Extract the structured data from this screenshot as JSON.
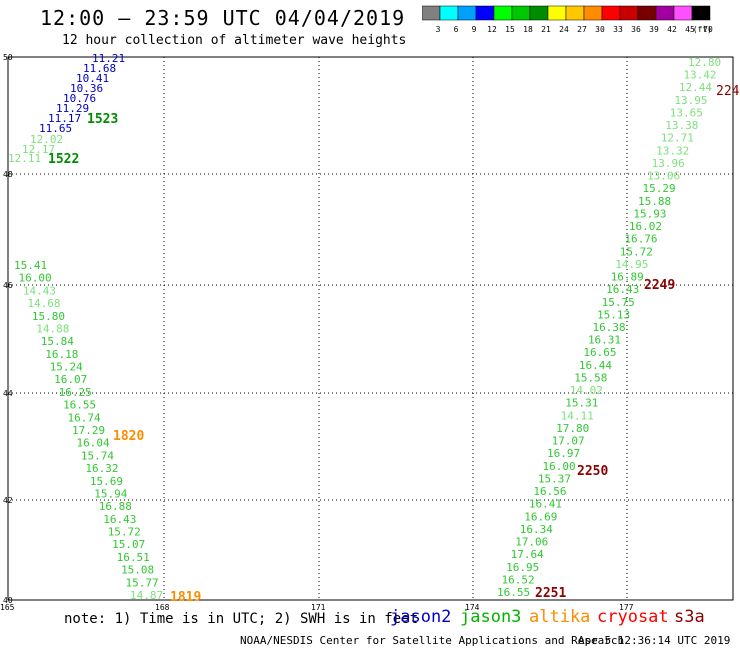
{
  "header": {
    "title": "12:00 – 23:59 UTC 04/04/2019",
    "subtitle": "12 hour collection of altimeter wave heights"
  },
  "color_scale": {
    "unit": "(ft)",
    "bins": [
      {
        "label": "3",
        "color": "#808080"
      },
      {
        "label": "6",
        "color": "#00ffff"
      },
      {
        "label": "9",
        "color": "#00a0ff"
      },
      {
        "label": "12",
        "color": "#0000ff"
      },
      {
        "label": "15",
        "color": "#00ff00"
      },
      {
        "label": "18",
        "color": "#00c800"
      },
      {
        "label": "21",
        "color": "#008c00"
      },
      {
        "label": "24",
        "color": "#ffff00"
      },
      {
        "label": "27",
        "color": "#ffc800"
      },
      {
        "label": "30",
        "color": "#ff8c00"
      },
      {
        "label": "33",
        "color": "#ff0000"
      },
      {
        "label": "36",
        "color": "#c80000"
      },
      {
        "label": "39",
        "color": "#780000"
      },
      {
        "label": "42",
        "color": "#a000a0"
      },
      {
        "label": "45",
        "color": "#ff50ff"
      },
      {
        "label": "70",
        "color": "#000000"
      }
    ]
  },
  "axes": {
    "lat_labels": [
      "50",
      "48",
      "46",
      "44",
      "42",
      "40"
    ],
    "lon_labels": [
      "165",
      "168",
      "171",
      "174",
      "177"
    ]
  },
  "text_colors": {
    "jason2": "#0000c8",
    "jason3_light": "#7ee07e",
    "jason3_mid": "#32c832",
    "jason3_dark": "#008c00",
    "altika": "#ff8c00",
    "cryosat": "#ff0000",
    "s3a": "#8b0000"
  },
  "tracks": {
    "track1": {
      "values": [
        "11.21",
        "11.68",
        "10.41",
        "10.36",
        "10.76",
        "11.29",
        "11.17",
        "11.65",
        "12.11",
        "12.02",
        "12.17"
      ],
      "tags": [
        "1523",
        "1522"
      ]
    },
    "track2": {
      "values": [
        "15.41",
        "16.00",
        "14.43",
        "14.68",
        "15.80",
        "14.88",
        "15.84",
        "16.18",
        "15.24",
        "16.07",
        "16.25",
        "16.55",
        "16.74",
        "17.29",
        "16.04",
        "15.74",
        "16.32",
        "15.69",
        "15.94",
        "16.88",
        "16.43",
        "15.72",
        "15.07",
        "16.51",
        "15.08",
        "15.77",
        "14.87"
      ],
      "tags": [
        "1820",
        "1819"
      ]
    },
    "track3": {
      "values": [
        "12.80",
        "13.42",
        "12.44",
        "13.95",
        "13.65",
        "13.38",
        "12.71",
        "13.32",
        "13.96",
        "13.06",
        "15.29",
        "15.88",
        "15.93",
        "16.02",
        "16.76",
        "15.72",
        "14.95",
        "16.89",
        "16.43",
        "15.75",
        "15.13",
        "16.38",
        "16.31",
        "16.65",
        "16.44",
        "15.58",
        "14.02",
        "15.31",
        "14.11",
        "17.80",
        "17.07",
        "16.97",
        "16.00",
        "15.37",
        "16.56",
        "16.41",
        "16.69",
        "16.34",
        "17.06",
        "17.64",
        "16.95",
        "16.52",
        "16.55"
      ],
      "tags": [
        "224",
        "2249",
        "2250",
        "2251"
      ]
    }
  },
  "footer": {
    "note": "note:  1) Time is in UTC;  2) SWH is in feet",
    "satellites": [
      "jason2",
      "jason3",
      "altika",
      "cryosat",
      "s3a"
    ],
    "credit": "NOAA/NESDIS Center for Satellite Applications and Research",
    "updated": "Apr  5 12:36:14 UTC 2019"
  }
}
